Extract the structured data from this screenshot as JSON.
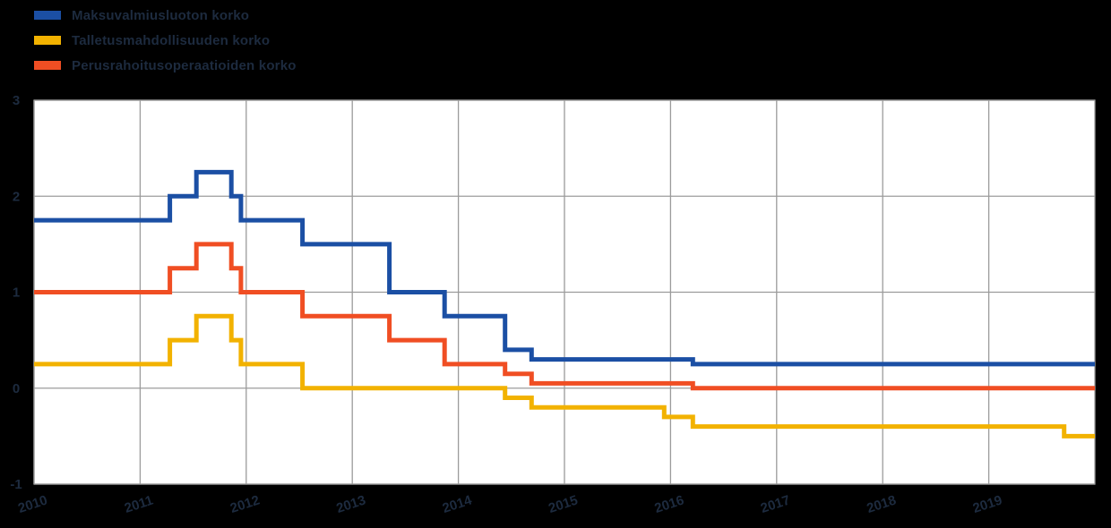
{
  "colors": {
    "background": "#000000",
    "plot_background": "#ffffff",
    "grid": "#9b9b9b",
    "text": "#1d2b3f"
  },
  "chart_data": {
    "type": "line",
    "step": true,
    "title": "",
    "xlabel": "",
    "ylabel": "",
    "x_range": [
      2010,
      2020
    ],
    "y_range": [
      -1,
      3
    ],
    "x_ticks": [
      "2010",
      "2011",
      "2012",
      "2013",
      "2014",
      "2015",
      "2016",
      "2017",
      "2018",
      "2019"
    ],
    "x_tick_values": [
      2010,
      2011,
      2012,
      2013,
      2014,
      2015,
      2016,
      2017,
      2018,
      2019
    ],
    "y_ticks": [
      3,
      2,
      1,
      0,
      -1
    ],
    "grid": true,
    "legend_position": "top-left",
    "series": [
      {
        "name": "Maksuvalmiusluoton korko",
        "color": "#1b4fa4",
        "points": [
          [
            2010.0,
            1.75
          ],
          [
            2011.28,
            2.0
          ],
          [
            2011.53,
            2.25
          ],
          [
            2011.86,
            2.0
          ],
          [
            2011.95,
            1.75
          ],
          [
            2012.53,
            1.5
          ],
          [
            2013.35,
            1.0
          ],
          [
            2013.87,
            0.75
          ],
          [
            2014.44,
            0.4
          ],
          [
            2014.69,
            0.3
          ],
          [
            2016.21,
            0.25
          ],
          [
            2020.0,
            0.25
          ]
        ]
      },
      {
        "name": "Talletusmahdollisuuden korko",
        "color": "#f2b200",
        "points": [
          [
            2010.0,
            0.25
          ],
          [
            2011.28,
            0.5
          ],
          [
            2011.53,
            0.75
          ],
          [
            2011.86,
            0.5
          ],
          [
            2011.95,
            0.25
          ],
          [
            2012.53,
            0.0
          ],
          [
            2014.44,
            -0.1
          ],
          [
            2014.69,
            -0.2
          ],
          [
            2015.94,
            -0.3
          ],
          [
            2016.21,
            -0.4
          ],
          [
            2019.71,
            -0.5
          ],
          [
            2020.0,
            -0.5
          ]
        ]
      },
      {
        "name": "Perusrahoitusoperaatioiden korko",
        "color": "#f04e23",
        "points": [
          [
            2010.0,
            1.0
          ],
          [
            2011.28,
            1.25
          ],
          [
            2011.53,
            1.5
          ],
          [
            2011.86,
            1.25
          ],
          [
            2011.95,
            1.0
          ],
          [
            2012.53,
            0.75
          ],
          [
            2013.35,
            0.5
          ],
          [
            2013.87,
            0.25
          ],
          [
            2014.44,
            0.15
          ],
          [
            2014.69,
            0.05
          ],
          [
            2016.21,
            0.0
          ],
          [
            2020.0,
            0.0
          ]
        ]
      }
    ]
  }
}
